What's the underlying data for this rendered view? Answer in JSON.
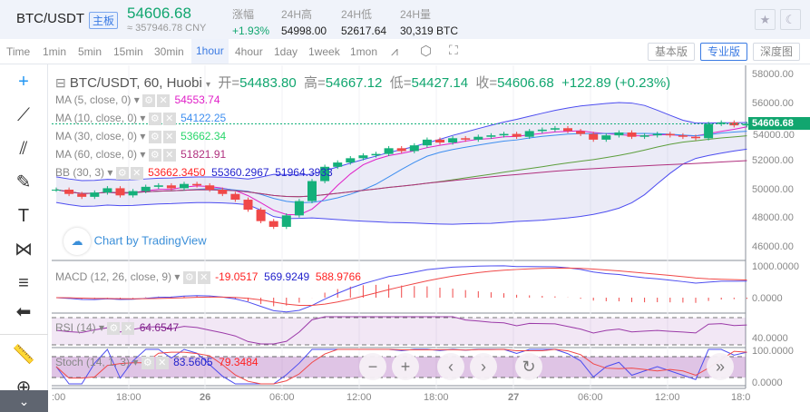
{
  "header": {
    "symbol": "BTC/USDT",
    "tag": "主板",
    "price": "54606.68",
    "cny": "≈ 357946.78 CNY",
    "stats": [
      {
        "label": "涨幅",
        "value": "+1.93%"
      },
      {
        "label": "24H高",
        "value": "54998.00"
      },
      {
        "label": "24H低",
        "value": "52617.64"
      },
      {
        "label": "24H量",
        "value": "30,319 BTC"
      }
    ]
  },
  "toolbar": {
    "intervals": [
      "Time",
      "1min",
      "5min",
      "15min",
      "30min",
      "1hour",
      "4hour",
      "1day",
      "1week",
      "1mon"
    ],
    "active": "1hour",
    "views": [
      "基本版",
      "专业版",
      "深度图"
    ],
    "active_view": "专业版"
  },
  "chart": {
    "title": "BTC/USDT, 60, Huobi",
    "open_l": "开=",
    "open": "54483.80",
    "high_l": "高=",
    "high": "54667.12",
    "low_l": "低=",
    "low": "54427.14",
    "close_l": "收=",
    "close": "54606.68",
    "change": "+122.89 (+0.23%)",
    "indicators": [
      {
        "label": "MA (5, close, 0)",
        "values": [
          "54553.74"
        ],
        "color": "#e020c8"
      },
      {
        "label": "MA (10, close, 0)",
        "values": [
          "54122.25"
        ],
        "color": "#3d8ef0"
      },
      {
        "label": "MA (30, close, 0)",
        "values": [
          "53662.34"
        ],
        "color": "#28d66a"
      },
      {
        "label": "MA (60, close, 0)",
        "values": [
          "51821.91"
        ],
        "color": "#b0307e"
      },
      {
        "label": "BB (30, 3)",
        "values": [
          "53662.3450",
          "55360.2967",
          "51964.3933"
        ]
      }
    ],
    "watermark": "Chart by TradingView",
    "price_axis": [
      "58000.00",
      "56000.00",
      "54000.00",
      "52000.00",
      "50000.00",
      "48000.00",
      "46000.00"
    ],
    "last_price": "54606.68",
    "closes": [
      50000,
      49700,
      49500,
      49800,
      50100,
      49600,
      49900,
      50200,
      50300,
      50100,
      50400,
      50300,
      50000,
      49700,
      49300,
      48600,
      47800,
      47400,
      48200,
      49200,
      50600,
      51600,
      51900,
      52200,
      52400,
      52500,
      52900,
      52700,
      53100,
      53500,
      53300,
      53600,
      53500,
      53700,
      53800,
      53900,
      53700,
      54100,
      54200,
      54300,
      54100,
      53900,
      53500,
      53800,
      54000,
      53700,
      53800,
      53900,
      53800,
      53700,
      53600,
      54600,
      54700,
      54500,
      54600
    ]
  },
  "macd": {
    "label": "MACD (12, 26, close, 9)",
    "values": [
      "-19.0517",
      "569.9249",
      "588.9766"
    ],
    "axis": [
      "1000.0000",
      "0.0000"
    ]
  },
  "rsi": {
    "label": "RSI (14)",
    "value": "64.6547",
    "axis": [
      "40.0000"
    ]
  },
  "stoch": {
    "label": "Stoch (14, 1, 3)",
    "values": [
      "83.5605",
      "79.3484"
    ],
    "axis": [
      "100.0000",
      "0.0000"
    ]
  },
  "time_axis": [
    ":00",
    "18:00",
    "26",
    "06:00",
    "12:00",
    "18:00",
    "27",
    "06:00",
    "12:00",
    "18:0"
  ]
}
